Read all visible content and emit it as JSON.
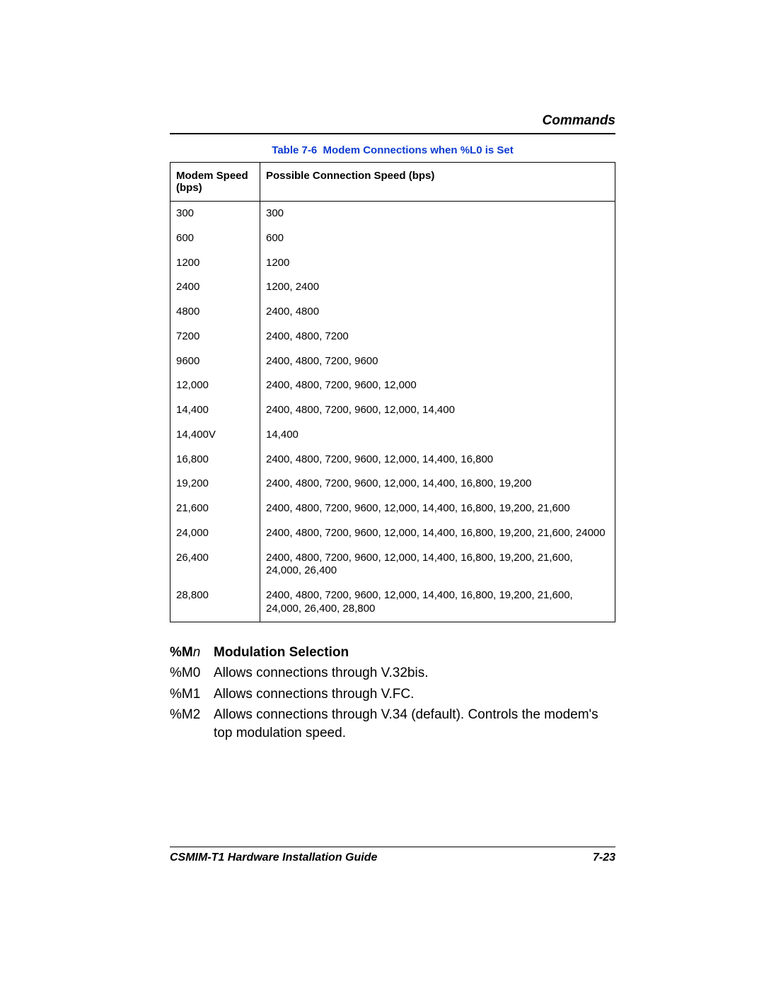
{
  "header": {
    "section": "Commands"
  },
  "table": {
    "caption_prefix": "Table 7-6",
    "caption_title": "Modem Connections when %L0 is Set",
    "columns": [
      "Modem Speed (bps)",
      "Possible Connection Speed (bps)"
    ],
    "rows": [
      [
        "300",
        "300"
      ],
      [
        "600",
        "600"
      ],
      [
        "1200",
        "1200"
      ],
      [
        "2400",
        "1200, 2400"
      ],
      [
        "4800",
        "2400, 4800"
      ],
      [
        "7200",
        "2400, 4800, 7200"
      ],
      [
        "9600",
        "2400, 4800, 7200, 9600"
      ],
      [
        "12,000",
        "2400, 4800, 7200, 9600, 12,000"
      ],
      [
        "14,400",
        "2400, 4800, 7200, 9600, 12,000, 14,400"
      ],
      [
        "14,400V",
        "14,400"
      ],
      [
        "16,800",
        "2400, 4800, 7200, 9600, 12,000, 14,400, 16,800"
      ],
      [
        "19,200",
        "2400, 4800, 7200, 9600, 12,000, 14,400, 16,800, 19,200"
      ],
      [
        "21,600",
        "2400, 4800, 7200, 9600, 12,000, 14,400, 16,800, 19,200, 21,600"
      ],
      [
        "24,000",
        "2400, 4800, 7200, 9600, 12,000, 14,400, 16,800, 19,200, 21,600, 24000"
      ],
      [
        "26,400",
        "2400, 4800, 7200, 9600, 12,000, 14,400, 16,800, 19,200, 21,600, 24,000, 26,400"
      ],
      [
        "28,800",
        "2400, 4800, 7200, 9600, 12,000, 14,400, 16,800, 19,200, 21,600, 24,000, 26,400, 28,800"
      ]
    ]
  },
  "commands": {
    "heading_key_bold": "%M",
    "heading_key_italic": "n",
    "heading_title": "Modulation Selection",
    "items": [
      {
        "key": "%M0",
        "desc": "Allows connections through V.32bis."
      },
      {
        "key": "%M1",
        "desc": "Allows connections through V.FC."
      },
      {
        "key": "%M2",
        "desc": "Allows connections through V.34 (default). Controls the modem's top modulation speed."
      }
    ]
  },
  "footer": {
    "left": "CSMIM-T1 Hardware Installation Guide",
    "right": "7-23"
  },
  "styling": {
    "caption_color": "#0b3bd1",
    "text_color": "#000000",
    "border_color": "#000000",
    "body_fontsize_pt": 14,
    "caption_fontsize_pt": 11,
    "table_fontsize_pt": 11
  }
}
